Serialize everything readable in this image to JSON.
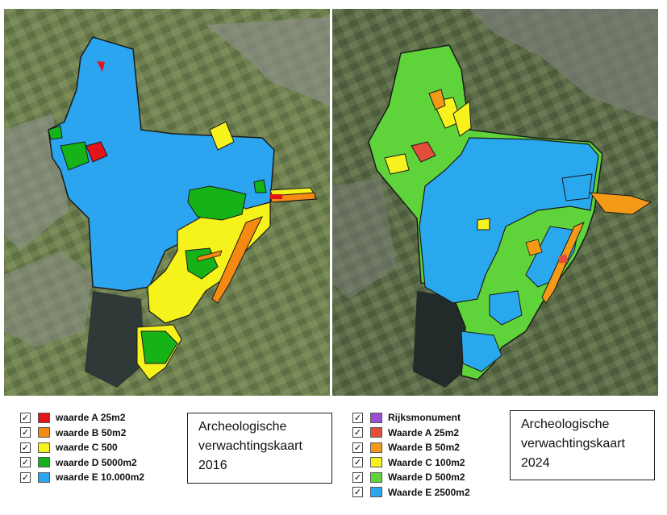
{
  "maps": [
    {
      "year": "2016",
      "title_line1": "Archeologische",
      "title_line2": "verwachtingskaart",
      "title_line3": "2016",
      "legend": [
        {
          "label": "waarde A 25m2",
          "color": "#e3141b",
          "checked": true
        },
        {
          "label": "waarde B 50m2",
          "color": "#f58a12",
          "checked": true
        },
        {
          "label": "waarde C 500",
          "color": "#f6f21c",
          "checked": true
        },
        {
          "label": "waarde D 5000m2",
          "color": "#15b318",
          "checked": true
        },
        {
          "label": "waarde E 10.000m2",
          "color": "#2ba5f0",
          "checked": true
        }
      ]
    },
    {
      "year": "2024",
      "title_line1": "Archeologische",
      "title_line2": "verwachtingskaart",
      "title_line3": "2024",
      "legend": [
        {
          "label": "Rijksmonument",
          "color": "#9b4fd4",
          "checked": true
        },
        {
          "label": "Waarde A 25m2",
          "color": "#e44d3a",
          "checked": true
        },
        {
          "label": "Waarde B 50m2",
          "color": "#f59a17",
          "checked": true
        },
        {
          "label": "Waarde C 100m2",
          "color": "#f7f21e",
          "checked": true
        },
        {
          "label": "Waarde D 500m2",
          "color": "#5fd43a",
          "checked": true
        },
        {
          "label": "Waarde E 2500m2",
          "color": "#2aa8ee",
          "checked": true
        }
      ]
    }
  ],
  "checkmark": "✓"
}
